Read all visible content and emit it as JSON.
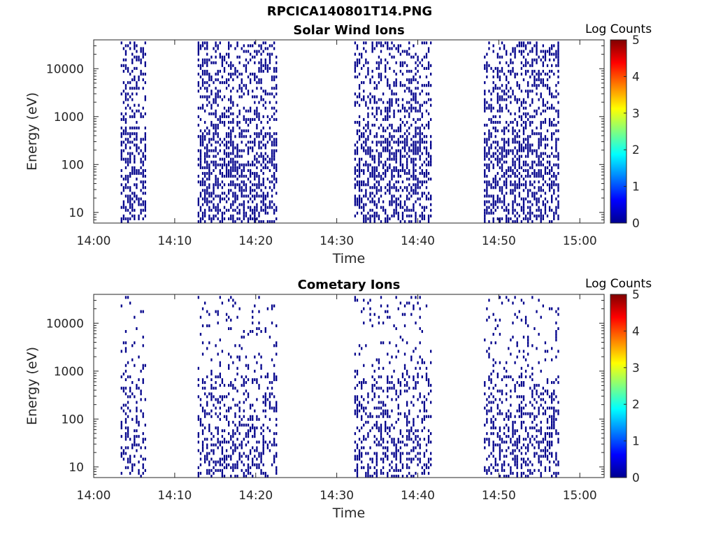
{
  "figure": {
    "title": "RPCICA140801T14.PNG"
  },
  "colormap": [
    "#00008f",
    "#0000ff",
    "#0080ff",
    "#00ffff",
    "#80ff80",
    "#ffff00",
    "#ff8000",
    "#ff0000",
    "#800000"
  ],
  "colors": {
    "data": "#00008b",
    "axis": "#262626"
  },
  "chart_data": [
    {
      "type": "heatmap",
      "title": "Solar Wind Ions",
      "xlabel": "Time",
      "ylabel": "Energy (eV)",
      "yscale": "log",
      "xlim": [
        "14:00",
        "15:03"
      ],
      "ylim": [
        6,
        40000
      ],
      "x_ticks": [
        "14:00",
        "14:10",
        "14:20",
        "14:30",
        "14:40",
        "14:50",
        "15:00"
      ],
      "y_ticks": [
        "10",
        "100",
        "1000",
        "10000"
      ],
      "colorbar": {
        "label": "Log Counts",
        "range": [
          0,
          5
        ],
        "ticks": [
          "0",
          "1",
          "2",
          "3",
          "4",
          "5"
        ]
      },
      "grid": false,
      "value_at_points": 0.2,
      "active_intervals": [
        [
          "14:03:20",
          "14:06:20"
        ],
        [
          "14:12:50",
          "14:22:30"
        ],
        [
          "14:32:10",
          "14:41:40"
        ],
        [
          "14:48:10",
          "14:57:30"
        ]
      ],
      "energy_range_eV": [
        6,
        37000
      ]
    },
    {
      "type": "heatmap",
      "title": "Cometary Ions",
      "xlabel": "Time",
      "ylabel": "Energy (eV)",
      "yscale": "log",
      "xlim": [
        "14:00",
        "15:03"
      ],
      "ylim": [
        6,
        40000
      ],
      "x_ticks": [
        "14:00",
        "14:10",
        "14:20",
        "14:30",
        "14:40",
        "14:50",
        "15:00"
      ],
      "y_ticks": [
        "10",
        "100",
        "1000",
        "10000"
      ],
      "colorbar": {
        "label": "Log Counts",
        "range": [
          0,
          5
        ],
        "ticks": [
          "0",
          "1",
          "2",
          "3",
          "4",
          "5"
        ]
      },
      "grid": false,
      "value_at_points": 0.2,
      "active_intervals": [
        [
          "14:03:20",
          "14:06:20"
        ],
        [
          "14:12:50",
          "14:22:30"
        ],
        [
          "14:32:10",
          "14:41:40"
        ],
        [
          "14:48:10",
          "14:57:30"
        ]
      ],
      "energy_range_eV": [
        6,
        37000
      ]
    }
  ]
}
